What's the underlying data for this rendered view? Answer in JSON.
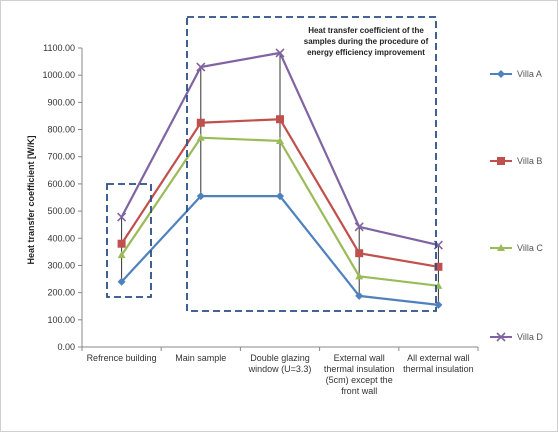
{
  "chart_data": {
    "type": "line",
    "title": "",
    "xlabel": "",
    "ylabel": "Heat transfer coefficient [W/K]",
    "ylim": [
      0,
      1100
    ],
    "ytick_step": 100,
    "ytick_labels": [
      "0.00",
      "100.00",
      "200.00",
      "300.00",
      "400.00",
      "500.00",
      "600.00",
      "700.00",
      "800.00",
      "900.00",
      "1000.00",
      "1100.00"
    ],
    "grid": false,
    "legend_placement": "right",
    "categories": [
      [
        "Refrence building"
      ],
      [
        "Main sample"
      ],
      [
        "Double glazing",
        "window (U=3.3)"
      ],
      [
        "External wall",
        "thermal insulation",
        "(5cm) except the",
        "front wall"
      ],
      [
        "All external wall",
        "thermal insulation"
      ]
    ],
    "series": [
      {
        "name": "Villa A",
        "color": "#4f81bd",
        "marker": "diamond",
        "values": [
          240,
          555,
          555,
          188,
          155
        ]
      },
      {
        "name": "Villa B",
        "color": "#c0504d",
        "marker": "square",
        "values": [
          380,
          825,
          838,
          345,
          295
        ]
      },
      {
        "name": "Villa C",
        "color": "#9bbb59",
        "marker": "triangle",
        "values": [
          338,
          770,
          758,
          260,
          225
        ]
      },
      {
        "name": "Villa D",
        "color": "#8064a2",
        "marker": "x",
        "values": [
          478,
          1030,
          1082,
          442,
          375
        ]
      }
    ],
    "annotation": {
      "lines": [
        "Heat transfer coefficient of the",
        "samples during the procedure of",
        "energy efficiency improvement"
      ]
    }
  }
}
